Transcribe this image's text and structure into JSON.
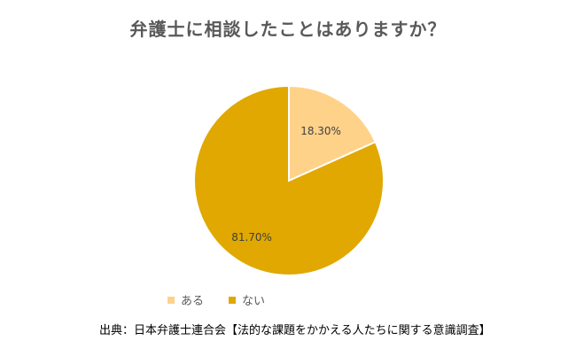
{
  "chart_data": {
    "type": "pie",
    "title": "弁護士に相談したことはありますか？",
    "slices": [
      {
        "label": "ある",
        "value": 18.3,
        "display": "18.30%",
        "color": "#FFD28A"
      },
      {
        "label": "ない",
        "value": 81.7,
        "display": "81.70%",
        "color": "#E0A800"
      }
    ],
    "legend_position": "bottom"
  },
  "source": "出典：日本弁護士連合会【法的な課題をかかえる人たちに関する意識調査】"
}
